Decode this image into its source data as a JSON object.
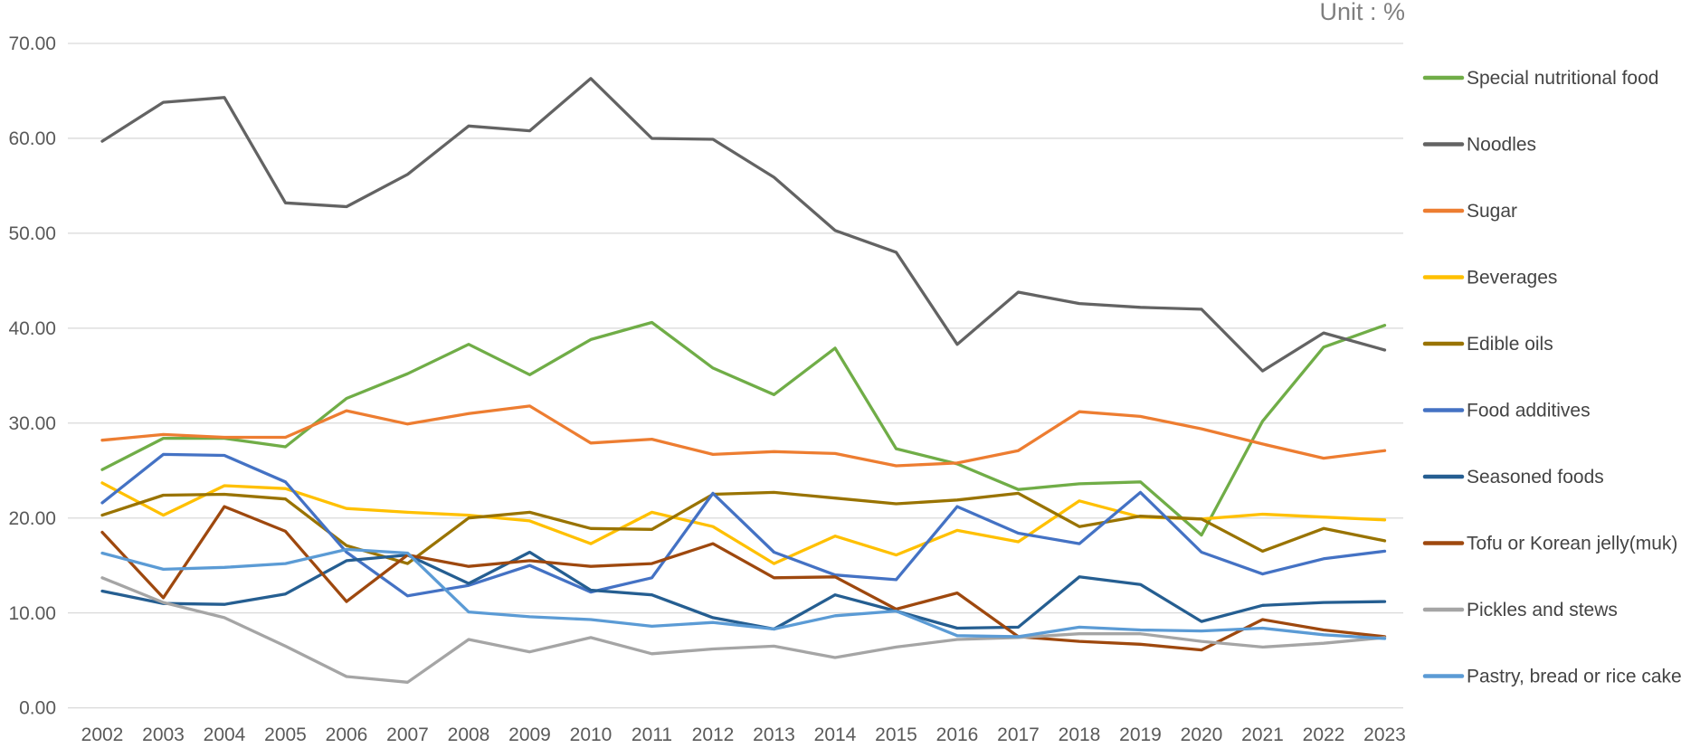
{
  "header": {
    "unit_label": "Unit : %"
  },
  "chart_data": {
    "type": "line",
    "title": "",
    "unit_label": "Unit : %",
    "xlabel": "",
    "ylabel": "",
    "ylim": [
      0,
      70
    ],
    "ytick_step": 10,
    "ytick_decimals": 2,
    "grid": true,
    "legend_position": "right",
    "x": [
      2002,
      2003,
      2004,
      2005,
      2006,
      2007,
      2008,
      2009,
      2010,
      2011,
      2012,
      2013,
      2014,
      2015,
      2016,
      2017,
      2018,
      2019,
      2020,
      2021,
      2022,
      2023
    ],
    "series": [
      {
        "name": "Special nutritional food",
        "color": "#70AD47",
        "values": [
          25.1,
          28.4,
          28.4,
          27.5,
          32.6,
          35.2,
          38.3,
          35.1,
          38.8,
          40.6,
          35.8,
          33.0,
          37.9,
          27.3,
          25.7,
          23.0,
          23.6,
          23.8,
          18.2,
          30.2,
          38.0,
          40.3
        ]
      },
      {
        "name": "Noodles",
        "color": "#636363",
        "values": [
          59.7,
          63.8,
          64.3,
          53.2,
          52.8,
          56.2,
          61.3,
          60.8,
          66.3,
          60.0,
          59.9,
          55.9,
          50.3,
          48.0,
          38.3,
          43.8,
          42.6,
          42.2,
          42.0,
          35.5,
          39.5,
          37.7
        ]
      },
      {
        "name": "Sugar",
        "color": "#ED7D31",
        "values": [
          28.2,
          28.8,
          28.5,
          28.5,
          31.3,
          29.9,
          31.0,
          31.8,
          27.9,
          28.3,
          26.7,
          27.0,
          26.8,
          25.5,
          25.8,
          27.1,
          31.2,
          30.7,
          29.4,
          27.8,
          26.3,
          27.1
        ]
      },
      {
        "name": "Beverages",
        "color": "#FFC000",
        "values": [
          23.7,
          20.3,
          23.4,
          23.1,
          21.0,
          20.6,
          20.3,
          19.7,
          17.3,
          20.6,
          19.1,
          15.2,
          18.1,
          16.1,
          18.7,
          17.5,
          21.8,
          20.1,
          19.9,
          20.4,
          20.1,
          19.8
        ]
      },
      {
        "name": "Edible oils",
        "color": "#997300",
        "values": [
          20.3,
          22.4,
          22.5,
          22.0,
          17.1,
          15.2,
          20.0,
          20.6,
          18.9,
          18.8,
          22.5,
          22.7,
          22.1,
          21.5,
          21.9,
          22.6,
          19.1,
          20.2,
          19.9,
          16.5,
          18.9,
          17.6
        ]
      },
      {
        "name": "Food additives",
        "color": "#4472C4",
        "values": [
          21.6,
          26.7,
          26.6,
          23.8,
          16.4,
          11.8,
          12.9,
          15.0,
          12.2,
          13.7,
          22.6,
          16.4,
          14.0,
          13.5,
          21.2,
          18.4,
          17.3,
          22.7,
          16.4,
          14.1,
          15.7,
          16.5
        ]
      },
      {
        "name": "Seasoned foods",
        "color": "#255E91",
        "values": [
          12.3,
          11.0,
          10.9,
          12.0,
          15.5,
          16.1,
          13.1,
          16.4,
          12.4,
          11.9,
          9.5,
          8.3,
          11.9,
          10.2,
          8.4,
          8.5,
          13.8,
          13.0,
          9.1,
          10.8,
          11.1,
          11.2
        ]
      },
      {
        "name": "Tofu or Korean jelly(muk)",
        "color": "#9E480E",
        "values": [
          18.5,
          11.6,
          21.2,
          18.6,
          11.2,
          16.1,
          14.9,
          15.5,
          14.9,
          15.2,
          17.3,
          13.7,
          13.8,
          10.4,
          12.1,
          7.5,
          7.0,
          6.7,
          6.1,
          9.3,
          8.2,
          7.5
        ]
      },
      {
        "name": "Pickles and stews",
        "color": "#A5A5A5",
        "values": [
          13.7,
          11.1,
          9.5,
          6.5,
          3.3,
          2.7,
          7.2,
          5.9,
          7.4,
          5.7,
          6.2,
          6.5,
          5.3,
          6.4,
          7.2,
          7.4,
          7.8,
          7.8,
          7.0,
          6.4,
          6.8,
          7.4
        ]
      },
      {
        "name": "Pastry, bread or rice cake",
        "color": "#5B9BD5",
        "values": [
          16.3,
          14.6,
          14.8,
          15.2,
          16.7,
          16.3,
          10.1,
          9.6,
          9.3,
          8.6,
          9.0,
          8.3,
          9.7,
          10.2,
          7.6,
          7.5,
          8.5,
          8.2,
          8.1,
          8.4,
          7.7,
          7.3
        ]
      }
    ]
  }
}
